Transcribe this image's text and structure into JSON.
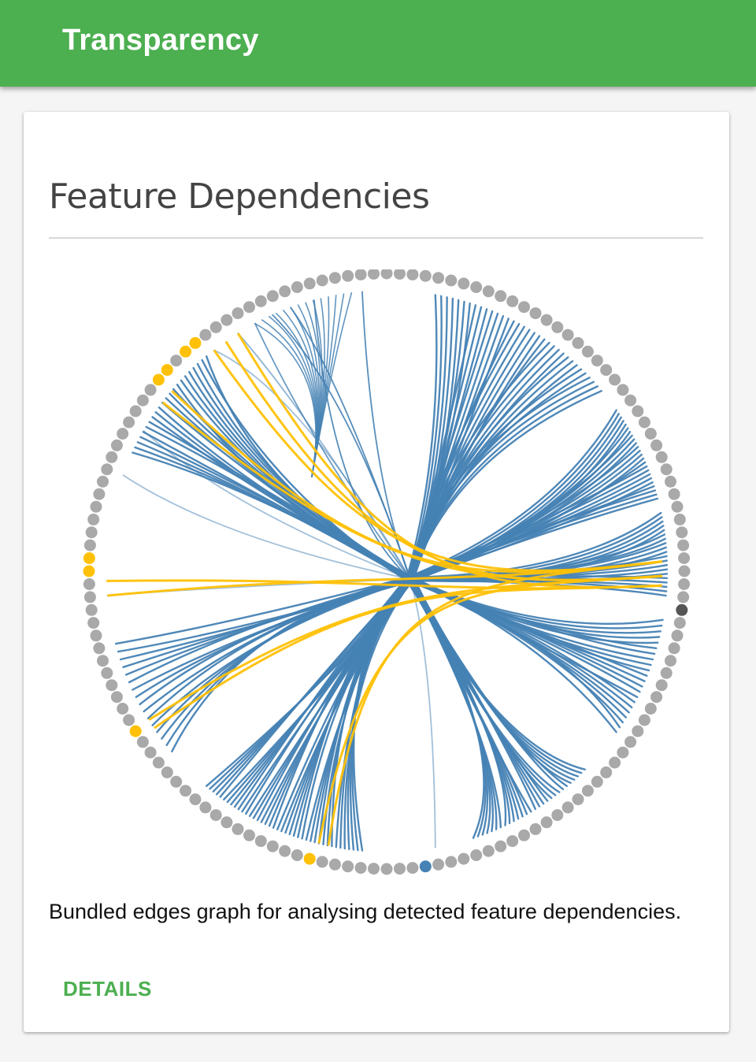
{
  "appbar": {
    "title": "Transparency"
  },
  "card": {
    "title": "Feature Dependencies",
    "description": "Bundled edges graph for analysing detected feature dependencies.",
    "details_label": "DETAILS"
  },
  "graph": {
    "type": "bundled-edges",
    "node_count": 144,
    "colors": {
      "node": "#a9a9a9",
      "node_highlight": "#ffc107",
      "node_selected": "#555555",
      "node_target": "#4682b4",
      "edge": "#4682b4",
      "edge_highlight": "#ffc107"
    }
  }
}
